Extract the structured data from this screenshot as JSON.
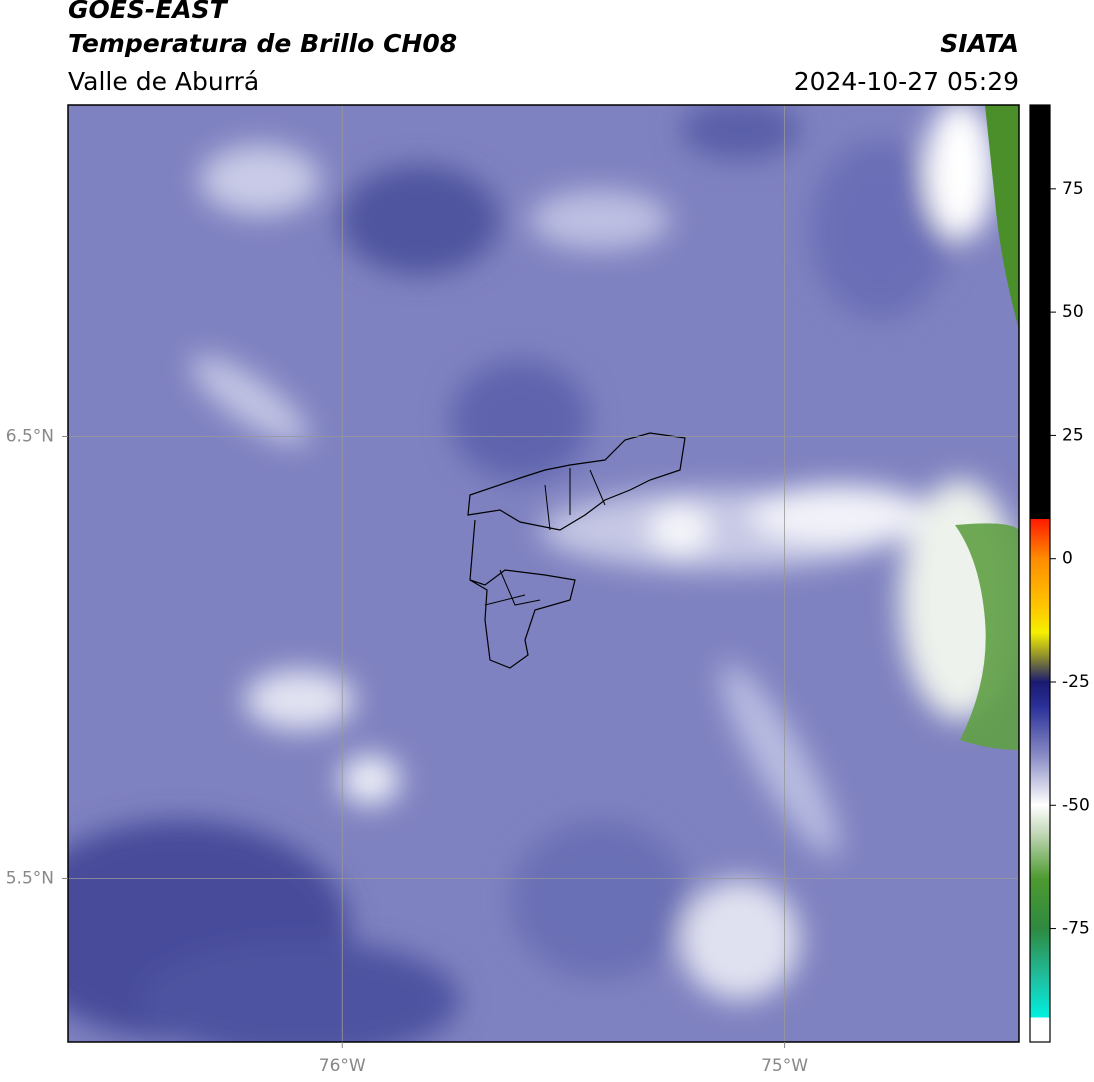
{
  "chart_data": {
    "type": "map",
    "title": "GOES-EAST",
    "subtitle": "Temperatura de Brillo CH08",
    "region": "Valle de Aburrá",
    "source": "SIATA",
    "datetime": "2024-10-27 05:29",
    "xlim": [
      -76.62,
      -74.47
    ],
    "ylim": [
      5.13,
      7.25
    ],
    "xticks": [
      {
        "value": -76,
        "label": "76°W"
      },
      {
        "value": -75,
        "label": "75°W"
      }
    ],
    "yticks": [
      {
        "value": 6.5,
        "label": "6.5°N"
      },
      {
        "value": 5.5,
        "label": "5.5°N"
      }
    ],
    "grid": true,
    "colorbar": {
      "lim": [
        -98,
        92
      ],
      "ticks": [
        75,
        50,
        25,
        0,
        -25,
        -50,
        -75
      ]
    }
  }
}
